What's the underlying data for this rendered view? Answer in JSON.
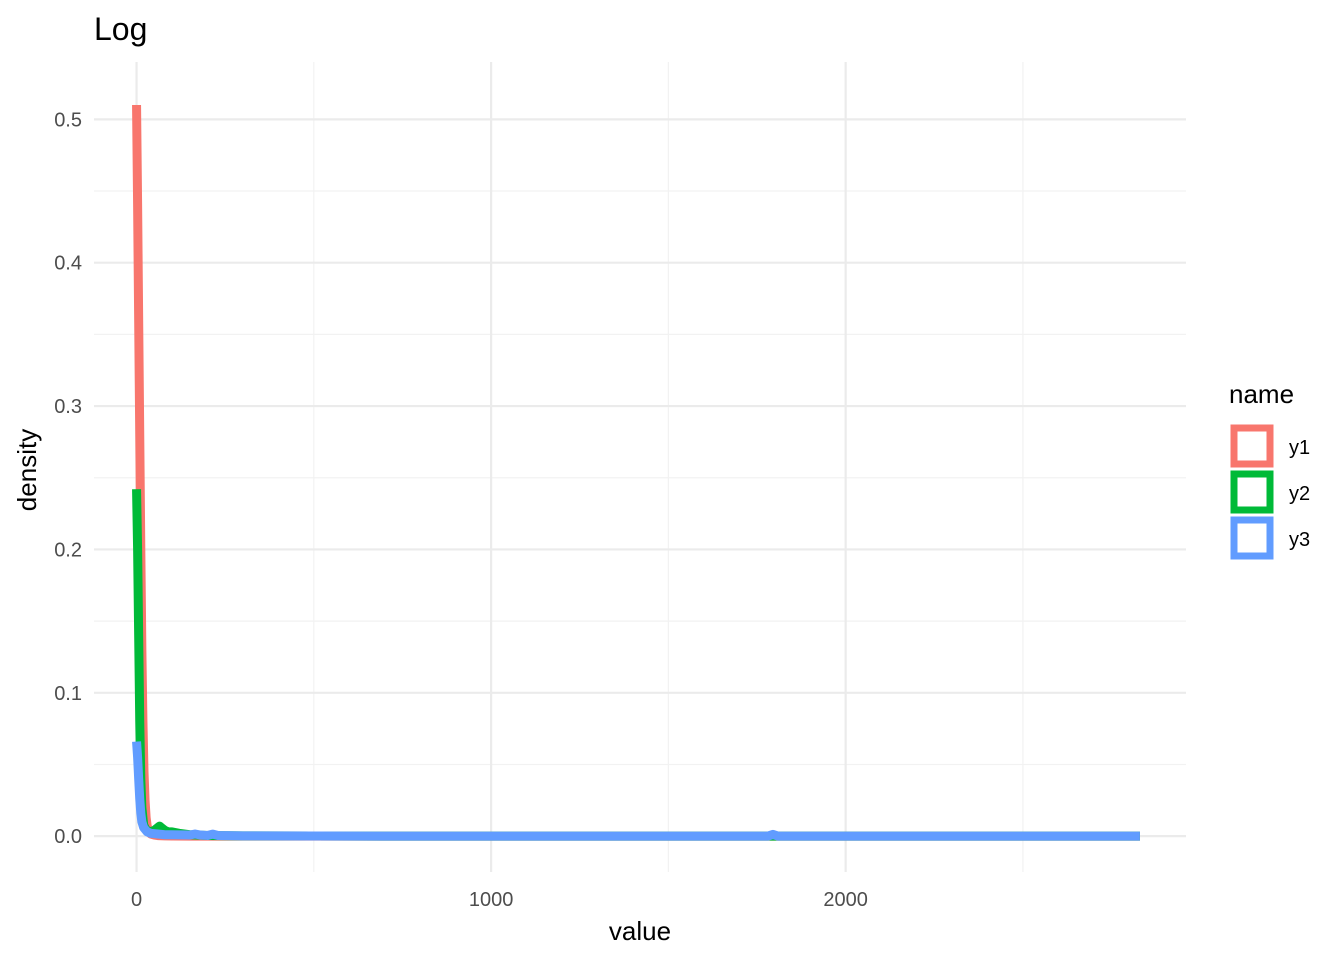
{
  "chart_data": {
    "type": "line",
    "title": "Log",
    "xlabel": "value",
    "ylabel": "density",
    "xlim": [
      -120,
      2960
    ],
    "ylim": [
      -0.025,
      0.54
    ],
    "x_ticks": [
      0,
      1000,
      2000
    ],
    "x_tick_labels": [
      "0",
      "1000",
      "2000"
    ],
    "y_ticks": [
      0.0,
      0.1,
      0.2,
      0.3,
      0.4,
      0.5
    ],
    "y_tick_labels": [
      "0.0",
      "0.1",
      "0.2",
      "0.3",
      "0.4",
      "0.5"
    ],
    "grid": true,
    "legend": {
      "title": "name",
      "position": "right"
    },
    "series": [
      {
        "name": "y1",
        "color": "#F8766D",
        "x": [
          0,
          3,
          6,
          9,
          12,
          15,
          18,
          21,
          24,
          27,
          30,
          35,
          40,
          50,
          60,
          80,
          100,
          150,
          200,
          300,
          500,
          1000,
          2000,
          2830
        ],
        "y": [
          0.51,
          0.44,
          0.36,
          0.28,
          0.2,
          0.13,
          0.08,
          0.045,
          0.025,
          0.013,
          0.007,
          0.003,
          0.0015,
          0.0008,
          0.0004,
          0.0002,
          0.0001,
          5e-05,
          2e-05,
          0.0,
          0.0,
          0.0,
          0.0,
          0.0
        ]
      },
      {
        "name": "y2",
        "color": "#00BA38",
        "x": [
          0,
          3,
          6,
          9,
          12,
          15,
          20,
          25,
          30,
          40,
          50,
          60,
          65,
          70,
          80,
          90,
          100,
          120,
          150,
          200,
          300,
          500,
          1000,
          2000,
          2830
        ],
        "y": [
          0.242,
          0.2,
          0.14,
          0.08,
          0.04,
          0.02,
          0.008,
          0.005,
          0.004,
          0.003,
          0.004,
          0.006,
          0.007,
          0.006,
          0.004,
          0.003,
          0.003,
          0.002,
          0.001,
          0.0005,
          0.0002,
          0.0001,
          0.0,
          0.0,
          0.0
        ]
      },
      {
        "name": "y3",
        "color": "#619CFF",
        "x": [
          0,
          3,
          6,
          9,
          12,
          15,
          20,
          30,
          40,
          60,
          80,
          100,
          150,
          165,
          180,
          200,
          215,
          230,
          300,
          500,
          1000,
          1500,
          1780,
          1795,
          1810,
          2000,
          2500,
          2830
        ],
        "y": [
          0.066,
          0.055,
          0.04,
          0.026,
          0.016,
          0.01,
          0.006,
          0.003,
          0.002,
          0.0015,
          0.001,
          0.001,
          0.0008,
          0.0015,
          0.0008,
          0.0005,
          0.0014,
          0.0005,
          0.0002,
          0.0001,
          0.0,
          0.0,
          0.0,
          0.0012,
          0.0,
          0.0,
          0.0,
          0.0
        ]
      }
    ]
  }
}
